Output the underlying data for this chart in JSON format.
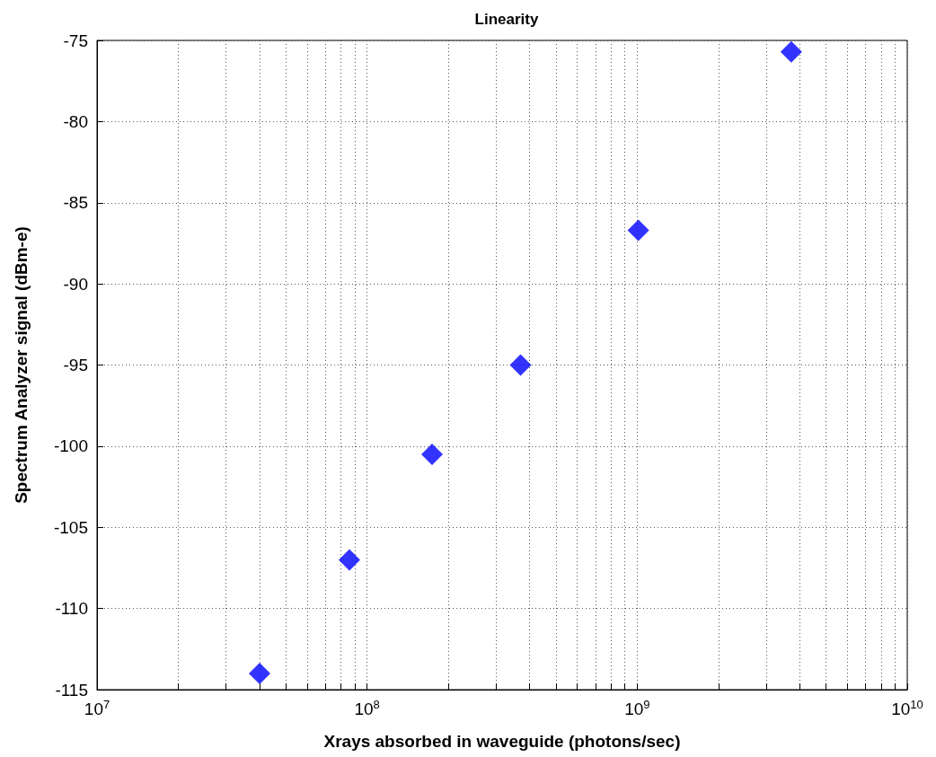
{
  "chart_data": {
    "type": "scatter",
    "title": "Linearity",
    "xlabel": "Xrays absorbed in waveguide (photons/sec)",
    "ylabel": "Spectrum Analyzer signal (dBm-e)",
    "x": [
      40000000,
      86000000,
      174000000,
      370000000,
      1010000000,
      3720000000
    ],
    "series": [
      {
        "color": "#0000ff",
        "values": [
          -114,
          -107,
          -100.5,
          -95,
          -86.7,
          -75.7
        ]
      }
    ],
    "log": "x",
    "xlim": [
      10000000,
      10000000000
    ],
    "xticks": [
      {
        "value": 10000000,
        "label": "10$^{7}$"
      },
      {
        "value": 20000000,
        "label": null
      },
      {
        "value": 30000000,
        "label": null
      },
      {
        "value": 40000000,
        "label": null
      },
      {
        "value": 50000000,
        "label": null
      },
      {
        "value": 60000000,
        "label": null
      },
      {
        "value": 70000000,
        "label": null
      },
      {
        "value": 80000000,
        "label": null
      },
      {
        "value": 90000000,
        "label": null
      },
      {
        "value": 100000000,
        "label": "10$^{8}$"
      },
      {
        "value": 200000000,
        "label": null
      },
      {
        "value": 300000000,
        "label": null
      },
      {
        "value": 400000000,
        "label": null
      },
      {
        "value": 500000000,
        "label": null
      },
      {
        "value": 600000000,
        "label": null
      },
      {
        "value": 700000000,
        "label": null
      },
      {
        "value": 800000000,
        "label": null
      },
      {
        "value": 900000000,
        "label": null
      },
      {
        "value": 1000000000,
        "label": "10$^{9}$"
      },
      {
        "value": 2000000000,
        "label": null
      },
      {
        "value": 3000000000,
        "label": null
      },
      {
        "value": 4000000000,
        "label": null
      },
      {
        "value": 5000000000,
        "label": null
      },
      {
        "value": 6000000000,
        "label": null
      },
      {
        "value": 7000000000,
        "label": null
      },
      {
        "value": 8000000000,
        "label": null
      },
      {
        "value": 9000000000,
        "label": null
      },
      {
        "value": 10000000000,
        "label": "10$^{10}$"
      }
    ],
    "ylim": [
      -115,
      -75
    ],
    "yticks": [
      -115,
      -110,
      -105,
      -100,
      -95,
      -90,
      -85,
      -80,
      -75
    ],
    "grid": true,
    "marker": "diamond"
  }
}
